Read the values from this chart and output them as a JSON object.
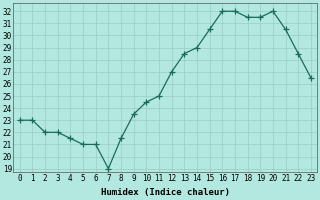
{
  "title": "",
  "xlabel": "Humidex (Indice chaleur)",
  "x": [
    0,
    1,
    2,
    3,
    4,
    5,
    6,
    7,
    8,
    9,
    10,
    11,
    12,
    13,
    14,
    15,
    16,
    17,
    18,
    19,
    20,
    21,
    22,
    23
  ],
  "y": [
    23,
    23,
    22,
    22,
    21.5,
    21,
    21,
    19,
    21.5,
    23.5,
    24.5,
    25,
    27,
    28.5,
    29,
    30.5,
    32,
    32,
    31.5,
    31.5,
    32,
    30.5,
    28.5,
    26.5
  ],
  "ylim_min": 18.7,
  "ylim_max": 32.7,
  "yticks": [
    19,
    20,
    21,
    22,
    23,
    24,
    25,
    26,
    27,
    28,
    29,
    30,
    31,
    32
  ],
  "xticks": [
    0,
    1,
    2,
    3,
    4,
    5,
    6,
    7,
    8,
    9,
    10,
    11,
    12,
    13,
    14,
    15,
    16,
    17,
    18,
    19,
    20,
    21,
    22,
    23
  ],
  "line_color": "#1a6b5a",
  "marker": "+",
  "bg_color": "#b3e8e0",
  "grid_color": "#99ccc4",
  "tick_label_fontsize": 5.5,
  "xlabel_fontsize": 6.5,
  "line_width": 0.9,
  "marker_size": 4,
  "marker_edge_width": 0.9
}
